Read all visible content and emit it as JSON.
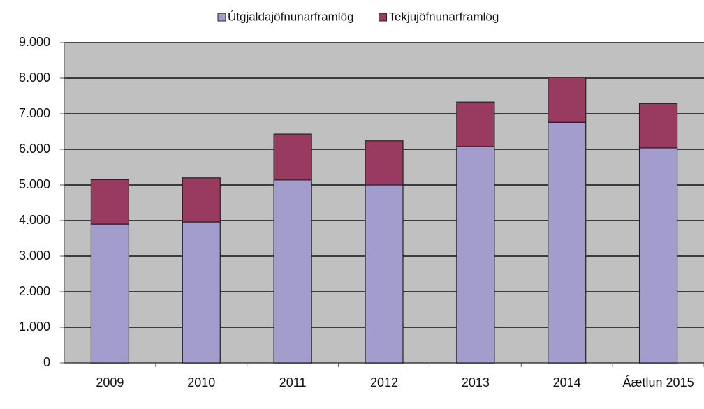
{
  "chart_data": {
    "type": "bar",
    "stacked": true,
    "categories": [
      "2009",
      "2010",
      "2011",
      "2012",
      "2013",
      "2014",
      "Áætlun 2015"
    ],
    "series": [
      {
        "name": "Útgjaldajöfnunarframlög",
        "color": "#a29dcc",
        "values": [
          3900,
          3960,
          5140,
          5000,
          6080,
          6760,
          6040
        ]
      },
      {
        "name": "Tekjujöfnunarframlög",
        "color": "#993a60",
        "values": [
          1250,
          1240,
          1290,
          1240,
          1250,
          1260,
          1250
        ]
      }
    ],
    "ylim": [
      0,
      9000
    ],
    "yticks": [
      0,
      {
        "value": 1000,
        "label": "1.000"
      },
      {
        "value": 2000,
        "label": "2.000"
      },
      {
        "value": 3000,
        "label": "3.000"
      },
      {
        "value": 4000,
        "label": "4.000"
      },
      {
        "value": 5000,
        "label": "5.000"
      },
      {
        "value": 6000,
        "label": "6.000"
      },
      {
        "value": 7000,
        "label": "7.000"
      },
      {
        "value": 8000,
        "label": "8.000"
      },
      {
        "value": 9000,
        "label": "9.000"
      }
    ],
    "grid": true,
    "legend": "top"
  }
}
